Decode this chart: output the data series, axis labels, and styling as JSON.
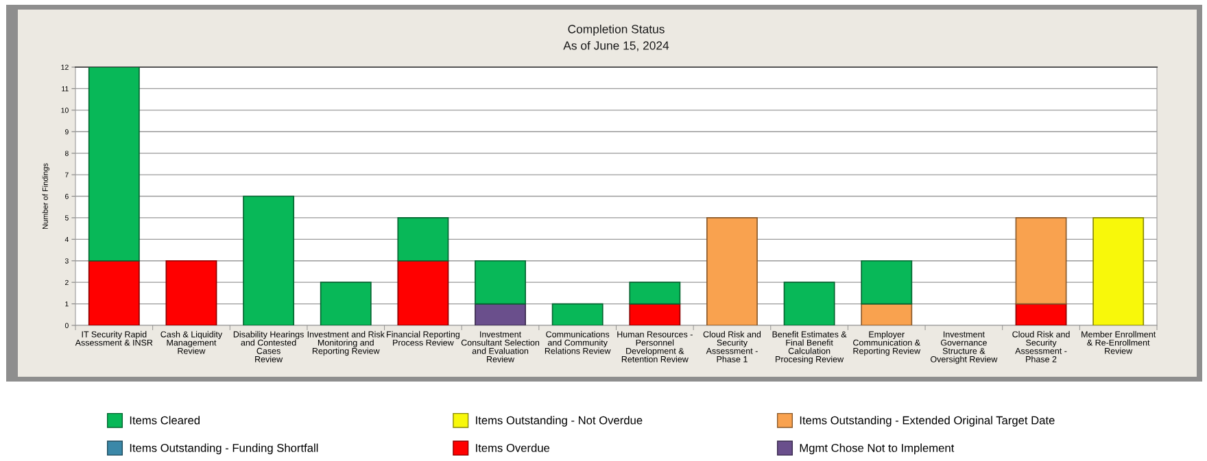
{
  "chart_data": {
    "type": "bar",
    "title": "Completion Status",
    "subtitle": "As of June 15, 2024",
    "ylabel": "Number of Findings",
    "categories": [
      "IT Security Rapid\nAssessment & INSR",
      "Cash & Liquidity\nManagement\nReview",
      "Disability Hearings\nand Contested\nCases\nReview",
      "Investment and Risk\nMonitoring and\nReporting Review",
      "Financial Reporting\nProcess Review",
      "Investment\nConsultant Selection\nand Evaluation\nReview",
      "Communications\nand Community\nRelations Review",
      "Human Resources -\nPersonnel\nDevelopment &\nRetention Review",
      "Cloud Risk and\nSecurity\nAssessment -\nPhase 1",
      "Benefit Estimates &\nFinal Benefit\nCalculation\nProcesing Review",
      "Employer\nCommunication &\nReporting Review",
      "Investment\nGovernance\nStructure &\nOversight Review",
      "Cloud Risk and\nSecurity\nAssessment -\nPhase 2",
      "Member Enrollment\n& Re-Enrollment\nReview"
    ],
    "stacked": true,
    "series": [
      {
        "name": "Mgmt Chose Not to Implement",
        "color": "#6a4f8c",
        "values": [
          null,
          null,
          null,
          null,
          null,
          1,
          null,
          null,
          null,
          null,
          null,
          null,
          null,
          null
        ]
      },
      {
        "name": "Items Overdue",
        "color": "#ff0000",
        "values": [
          3,
          3,
          null,
          null,
          3,
          null,
          null,
          1,
          null,
          null,
          null,
          null,
          1,
          null
        ]
      },
      {
        "name": "Items Outstanding - Funding Shortfall",
        "color": "#3b88a8",
        "values": [
          null,
          null,
          null,
          null,
          null,
          null,
          null,
          null,
          null,
          null,
          null,
          null,
          null,
          null
        ]
      },
      {
        "name": "Items Outstanding - Extended Original Target Date",
        "color": "#f9a24f",
        "values": [
          null,
          null,
          null,
          null,
          null,
          null,
          null,
          null,
          5,
          null,
          1,
          null,
          4,
          null
        ]
      },
      {
        "name": "Items Outstanding - Not Overdue",
        "color": "#f8f80a",
        "values": [
          null,
          null,
          null,
          null,
          null,
          null,
          null,
          null,
          null,
          null,
          null,
          null,
          null,
          5
        ]
      },
      {
        "name": "Items Cleared",
        "color": "#08b858",
        "values": [
          9,
          null,
          6,
          2,
          2,
          2,
          1,
          1,
          null,
          2,
          2,
          null,
          null,
          null
        ]
      }
    ],
    "ylim": [
      0,
      12
    ],
    "yticks": [
      0,
      1,
      2,
      3,
      4,
      5,
      6,
      7,
      8,
      9,
      10,
      11,
      12
    ],
    "grid": "y",
    "legend": "bottom"
  }
}
